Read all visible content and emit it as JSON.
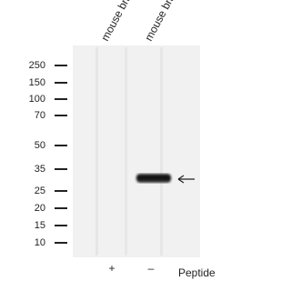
{
  "lanes": [
    {
      "label": "mouse brain"
    },
    {
      "label": "mouse brain"
    }
  ],
  "markers": [
    "250",
    "150",
    "100",
    "70",
    "50",
    "35",
    "25",
    "20",
    "15",
    "10"
  ],
  "peptide": {
    "lanes": [
      "+",
      "–"
    ],
    "label": "Peptide"
  }
}
